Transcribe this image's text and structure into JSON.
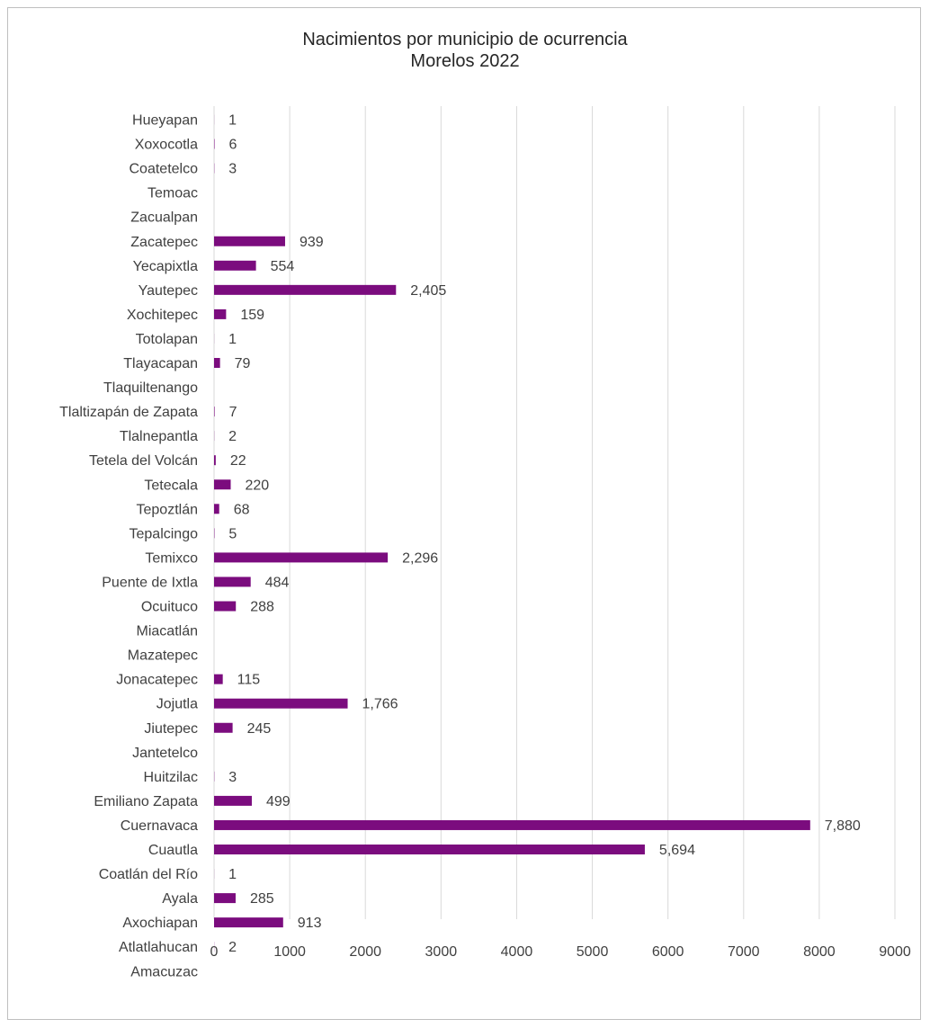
{
  "chart_data": {
    "type": "bar",
    "orientation": "horizontal",
    "title": "Nacimientos por municipio de ocurrencia",
    "subtitle": "Morelos 2022",
    "categories": [
      "Hueyapan",
      "Xoxocotla",
      "Coatetelco",
      "Temoac",
      "Zacualpan",
      "Zacatepec",
      "Yecapixtla",
      "Yautepec",
      "Xochitepec",
      "Totolapan",
      "Tlayacapan",
      "Tlaquiltenango",
      "Tlaltizapán de Zapata",
      "Tlalnepantla",
      "Tetela del Volcán",
      "Tetecala",
      "Tepoztlán",
      "Tepalcingo",
      "Temixco",
      "Puente de Ixtla",
      "Ocuituco",
      "Miacatlán",
      "Mazatepec",
      "Jonacatepec",
      "Jojutla",
      "Jiutepec",
      "Jantetelco",
      "Huitzilac",
      "Emiliano Zapata",
      "Cuernavaca",
      "Cuautla",
      "Coatlán del Río",
      "Ayala",
      "Axochiapan",
      "Atlatlahucan",
      "Amacuzac"
    ],
    "values": [
      1,
      6,
      3,
      null,
      null,
      939,
      554,
      2405,
      159,
      1,
      79,
      null,
      7,
      2,
      22,
      220,
      68,
      5,
      2296,
      484,
      288,
      null,
      null,
      115,
      1766,
      245,
      null,
      3,
      499,
      7880,
      5694,
      1,
      285,
      913,
      2,
      null
    ],
    "value_labels": [
      "1",
      "6",
      "3",
      "",
      "",
      "939",
      "554",
      "2,405",
      "159",
      "1",
      "79",
      "",
      "7",
      "2",
      "22",
      "220",
      "68",
      "5",
      "2,296",
      "484",
      "288",
      "",
      "",
      "115",
      "1,766",
      "245",
      "",
      "3",
      "499",
      "7,880",
      "5,694",
      "1",
      "285",
      "913",
      "2",
      ""
    ],
    "x_ticks": [
      "0",
      "1000",
      "2000",
      "3000",
      "4000",
      "5000",
      "6000",
      "7000",
      "8000",
      "9000"
    ],
    "xlim": [
      0,
      9000
    ],
    "xlabel": "",
    "ylabel": "",
    "grid": "vertical",
    "legend": "none",
    "colors": {
      "bar": "#7b0c7e",
      "grid": "#d9d9d9",
      "text": "#404040",
      "title": "#262626",
      "border": "#bfbfbf"
    }
  }
}
